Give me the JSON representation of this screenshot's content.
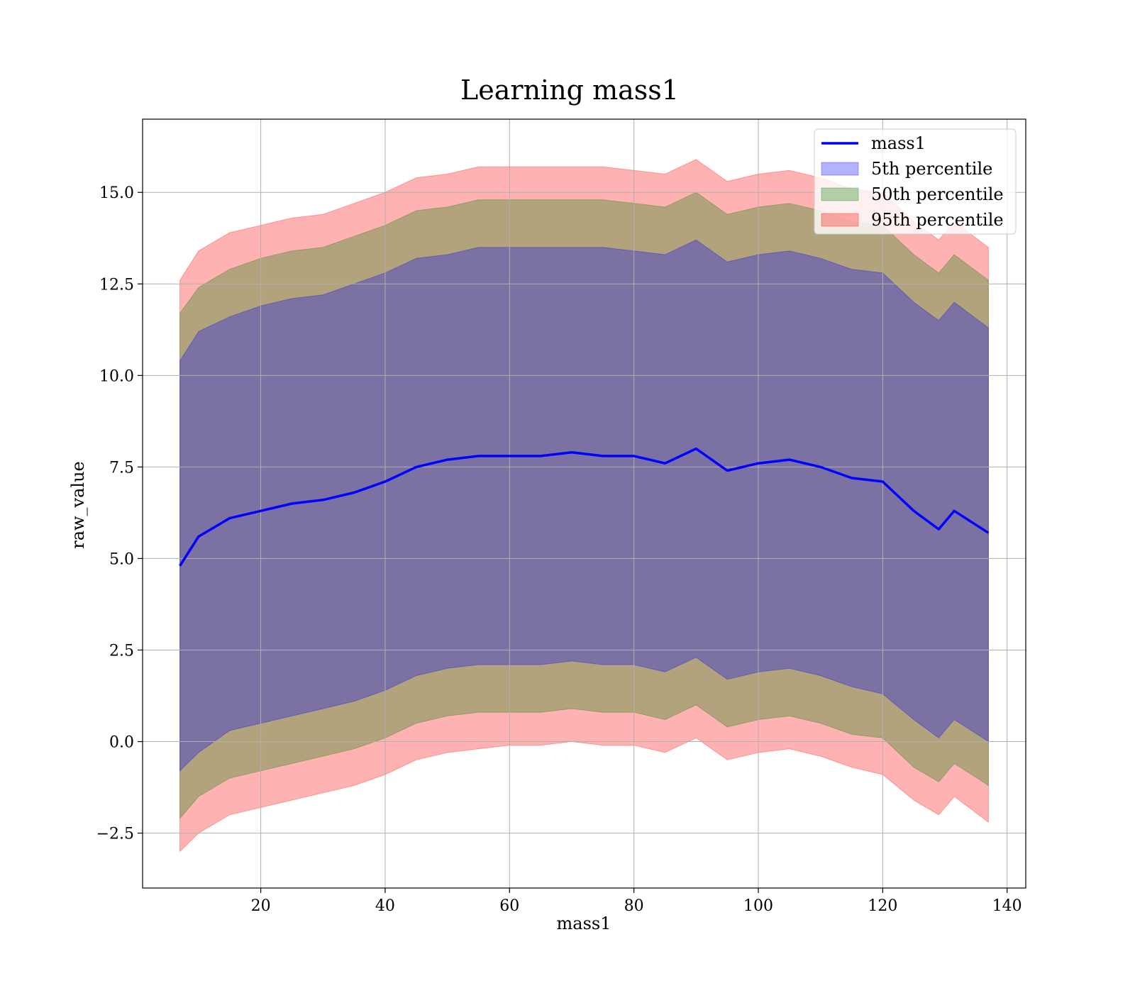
{
  "chart_data": {
    "type": "area",
    "title": "Learning mass1",
    "xlabel": "mass1",
    "ylabel": "raw_value",
    "xlim": [
      1,
      143
    ],
    "ylim": [
      -4.0,
      17.0
    ],
    "xticks": [
      20,
      40,
      60,
      80,
      100,
      120,
      140
    ],
    "xtick_labels": [
      "20",
      "40",
      "60",
      "80",
      "100",
      "120",
      "140"
    ],
    "yticks": [
      -2.5,
      0.0,
      2.5,
      5.0,
      7.5,
      10.0,
      12.5,
      15.0
    ],
    "ytick_labels": [
      "−2.5",
      "0.0",
      "2.5",
      "5.0",
      "7.5",
      "10.0",
      "12.5",
      "15.0"
    ],
    "grid": true,
    "legend_position": "top-right",
    "x": [
      7,
      10,
      15,
      20,
      25,
      30,
      35,
      40,
      45,
      50,
      55,
      60,
      65,
      70,
      75,
      80,
      85,
      90,
      95,
      100,
      105,
      110,
      115,
      120,
      125,
      129,
      131.5,
      137
    ],
    "series": [
      {
        "name": "mass1",
        "kind": "line",
        "color": "#0000ff",
        "values": [
          4.8,
          5.6,
          6.1,
          6.3,
          6.5,
          6.6,
          6.8,
          7.1,
          7.5,
          7.7,
          7.8,
          7.8,
          7.8,
          7.9,
          7.8,
          7.8,
          7.6,
          8.0,
          7.4,
          7.6,
          7.7,
          7.5,
          7.2,
          7.1,
          6.3,
          5.8,
          6.3,
          5.7
        ]
      },
      {
        "name": "5th percentile",
        "kind": "band",
        "color": "#0000ff",
        "lower": [
          -0.8,
          -0.3,
          0.3,
          0.5,
          0.7,
          0.9,
          1.1,
          1.4,
          1.8,
          2.0,
          2.1,
          2.1,
          2.1,
          2.2,
          2.1,
          2.1,
          1.9,
          2.3,
          1.7,
          1.9,
          2.0,
          1.8,
          1.5,
          1.3,
          0.6,
          0.1,
          0.6,
          0.0
        ],
        "upper": [
          10.4,
          11.2,
          11.6,
          11.9,
          12.1,
          12.2,
          12.5,
          12.8,
          13.2,
          13.3,
          13.5,
          13.5,
          13.5,
          13.5,
          13.5,
          13.4,
          13.3,
          13.7,
          13.1,
          13.3,
          13.4,
          13.2,
          12.9,
          12.8,
          12.0,
          11.5,
          12.0,
          11.3
        ]
      },
      {
        "name": "50th percentile",
        "kind": "band",
        "color": "#008000",
        "lower": [
          -2.1,
          -1.5,
          -1.0,
          -0.8,
          -0.6,
          -0.4,
          -0.2,
          0.1,
          0.5,
          0.7,
          0.8,
          0.8,
          0.8,
          0.9,
          0.8,
          0.8,
          0.6,
          1.0,
          0.4,
          0.6,
          0.7,
          0.5,
          0.2,
          0.1,
          -0.7,
          -1.1,
          -0.6,
          -1.2
        ],
        "upper": [
          11.7,
          12.4,
          12.9,
          13.2,
          13.4,
          13.5,
          13.8,
          14.1,
          14.5,
          14.6,
          14.8,
          14.8,
          14.8,
          14.8,
          14.8,
          14.7,
          14.6,
          15.0,
          14.4,
          14.6,
          14.7,
          14.5,
          14.2,
          14.1,
          13.3,
          12.8,
          13.3,
          12.6
        ]
      },
      {
        "name": "95th percentile",
        "kind": "band",
        "color": "#ff0000",
        "lower": [
          -3.0,
          -2.5,
          -2.0,
          -1.8,
          -1.6,
          -1.4,
          -1.2,
          -0.9,
          -0.5,
          -0.3,
          -0.2,
          -0.1,
          -0.1,
          0.0,
          -0.1,
          -0.1,
          -0.3,
          0.1,
          -0.5,
          -0.3,
          -0.2,
          -0.4,
          -0.7,
          -0.9,
          -1.6,
          -2.0,
          -1.5,
          -2.2
        ],
        "upper": [
          12.6,
          13.4,
          13.9,
          14.1,
          14.3,
          14.4,
          14.7,
          15.0,
          15.4,
          15.5,
          15.7,
          15.7,
          15.7,
          15.7,
          15.7,
          15.6,
          15.5,
          15.9,
          15.3,
          15.5,
          15.6,
          15.4,
          15.1,
          15.0,
          14.2,
          13.7,
          14.2,
          13.5
        ]
      }
    ]
  }
}
